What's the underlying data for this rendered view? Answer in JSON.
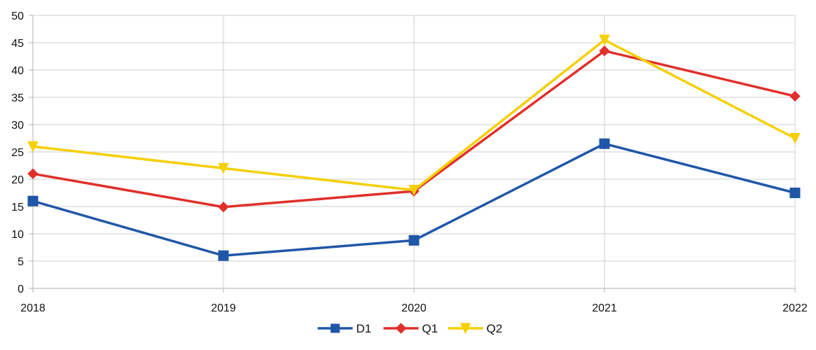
{
  "chart_data": {
    "type": "line",
    "x": [
      "2018",
      "2019",
      "2020",
      "2021",
      "2022"
    ],
    "series": [
      {
        "name": "D1",
        "values": [
          16,
          6,
          8.8,
          26.5,
          17.5
        ],
        "color": "#1f57a8",
        "marker": "square"
      },
      {
        "name": "Q1",
        "values": [
          21,
          14.9,
          17.8,
          43.5,
          35.2
        ],
        "color": "#e0302b",
        "marker": "diamond"
      },
      {
        "name": "Q2",
        "values": [
          26,
          22,
          18,
          45.5,
          27.5
        ],
        "color": "#f5cf00",
        "marker": "triangle-down"
      }
    ],
    "ylim": [
      0,
      50
    ],
    "yticks": [
      0,
      5,
      10,
      15,
      20,
      25,
      30,
      35,
      40,
      45,
      50
    ],
    "grid": true,
    "legend": "bottom-center"
  }
}
